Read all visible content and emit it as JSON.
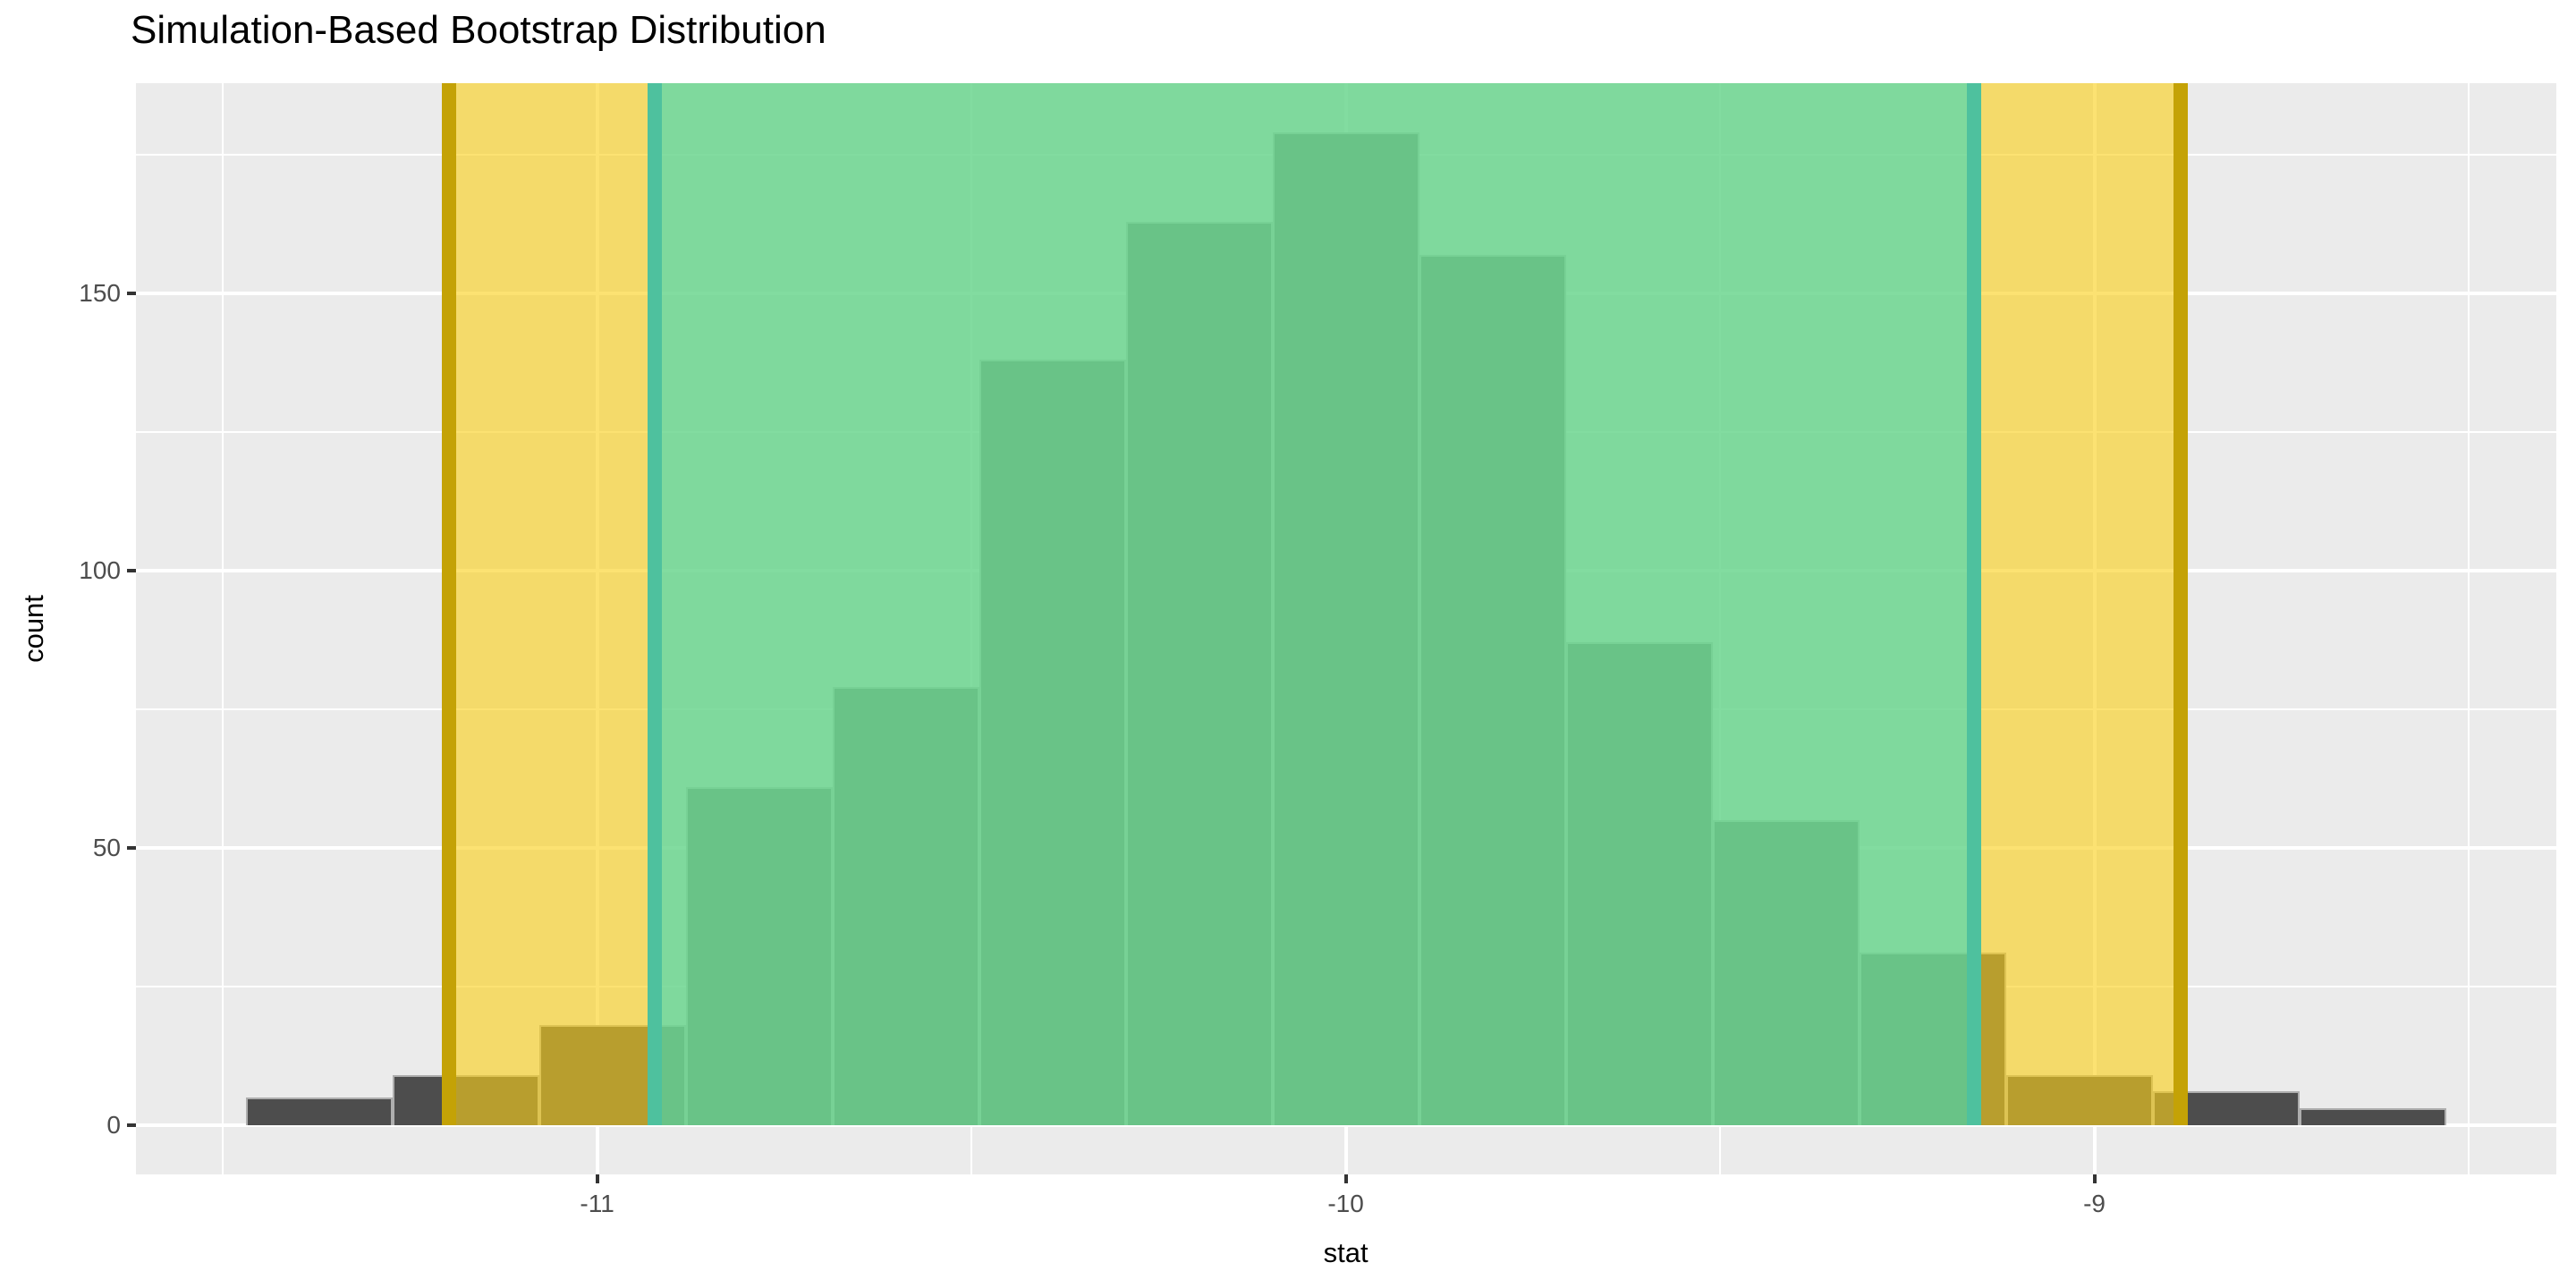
{
  "page": {
    "background": "#FFFFFF"
  },
  "chart_data": {
    "type": "bar",
    "subtype": "histogram",
    "title": "Simulation-Based Bootstrap Distribution",
    "xlabel": "stat",
    "ylabel": "count",
    "x_major_ticks": [
      -11,
      -10,
      -9
    ],
    "x_minor_ticks": [
      -11.5,
      -10.5,
      -9.5,
      -8.5
    ],
    "y_major_ticks": [
      0,
      50,
      100,
      150
    ],
    "y_minor_ticks": [
      25,
      75,
      125,
      175
    ],
    "x_domain": [
      -11.616,
      -8.383
    ],
    "y_domain": [
      -8.95,
      187.95
    ],
    "total_reps": 1000,
    "bins": {
      "start": -11.469,
      "width": 0.1959,
      "counts": [
        5,
        9,
        18,
        61,
        79,
        138,
        163,
        179,
        157,
        87,
        55,
        31,
        9,
        6,
        3
      ]
    },
    "histogram_fill": "#4D4D4D",
    "panel_fill": "#EBEBEB",
    "grid_color": "#FFFFFF",
    "axis_text_color": "#4D4D4D",
    "intervals": [
      {
        "name": "inner-interval",
        "endpoints": [
          -10.923,
          -9.161
        ],
        "band_fill": "#6DD690",
        "band_alpha": 0.86,
        "line_color": "#4EC19E"
      },
      {
        "name": "outer-interval",
        "endpoints": [
          -11.198,
          -8.885
        ],
        "band_fill": "#FAD01C",
        "band_alpha": 0.62,
        "line_color": "#C4A206"
      }
    ]
  }
}
